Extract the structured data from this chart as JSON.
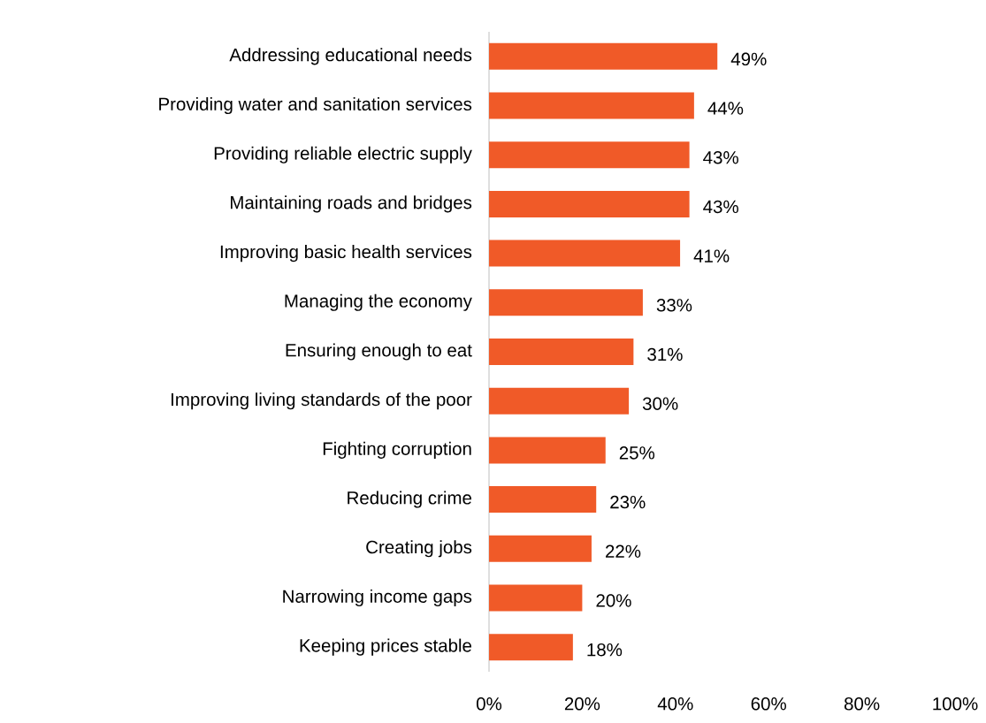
{
  "chart_data": {
    "type": "bar",
    "orientation": "horizontal",
    "categories": [
      "Addressing educational needs",
      "Providing water and sanitation services",
      "Providing reliable electric supply",
      "Maintaining roads and bridges",
      "Improving basic health services",
      "Managing the economy",
      "Ensuring enough to eat",
      "Improving living standards of the poor",
      "Fighting corruption",
      "Reducing crime",
      "Creating jobs",
      "Narrowing income gaps",
      "Keeping prices stable"
    ],
    "values": [
      49,
      44,
      43,
      43,
      41,
      33,
      31,
      30,
      25,
      23,
      22,
      20,
      18
    ],
    "value_labels": [
      "49%",
      "44%",
      "43%",
      "43%",
      "41%",
      "33%",
      "31%",
      "30%",
      "25%",
      "23%",
      "22%",
      "20%",
      "18%"
    ],
    "color": "#f05a28",
    "xlim": [
      0,
      100
    ],
    "xticks": [
      {
        "value": 0,
        "label": "0%"
      },
      {
        "value": 20,
        "label": "20%"
      },
      {
        "value": 40,
        "label": "40%"
      },
      {
        "value": 60,
        "label": "60%"
      },
      {
        "value": 80,
        "label": "80%"
      },
      {
        "value": 100,
        "label": "100%"
      }
    ],
    "grid": false
  }
}
